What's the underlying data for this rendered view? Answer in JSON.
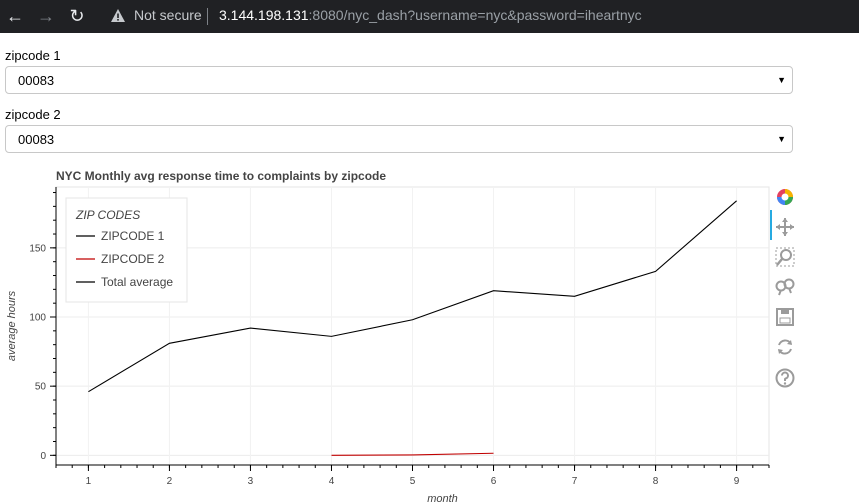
{
  "browser": {
    "not_secure_label": "Not secure",
    "url_host": "3.144.198.131",
    "url_rest": ":8080/nyc_dash?username=nyc&password=iheartnyc",
    "icons": [
      "back-arrow-icon",
      "forward-arrow-icon",
      "reload-icon",
      "warning-icon"
    ]
  },
  "controls": {
    "zip1": {
      "label": "zipcode 1",
      "value": "00083"
    },
    "zip2": {
      "label": "zipcode 2",
      "value": "00083"
    }
  },
  "toolbar": {
    "tools": [
      "bokeh-logo-icon",
      "pan-icon",
      "box-zoom-icon",
      "wheel-zoom-icon",
      "save-icon",
      "reset-icon",
      "help-icon"
    ],
    "active_color": "#26aae1"
  },
  "chart_data": {
    "type": "line",
    "title": "NYC Monthly avg response time to complaints by zipcode",
    "xlabel": "month",
    "ylabel": "average hours",
    "xlim": [
      0.6,
      9.4
    ],
    "ylim": [
      -7,
      194
    ],
    "x_ticks": [
      1,
      2,
      3,
      4,
      5,
      6,
      7,
      8,
      9
    ],
    "y_ticks": [
      0,
      50,
      100,
      150
    ],
    "grid": true,
    "legend": {
      "title": "ZIP CODES",
      "placement": "top-left",
      "entries": [
        "ZIPCODE 1",
        "ZIPCODE 2",
        "Total average"
      ]
    },
    "series": [
      {
        "name": "ZIPCODE 1",
        "color": "#000000",
        "x": [],
        "y": []
      },
      {
        "name": "ZIPCODE 2",
        "color": "#c00000",
        "x": [
          4,
          5,
          6
        ],
        "y": [
          0,
          0.3,
          1.5
        ]
      },
      {
        "name": "Total average",
        "color": "#000000",
        "x": [
          1,
          2,
          3,
          4,
          5,
          6,
          7,
          8,
          9
        ],
        "y": [
          46,
          81,
          92,
          86,
          98,
          119,
          115,
          133,
          184
        ]
      }
    ]
  }
}
